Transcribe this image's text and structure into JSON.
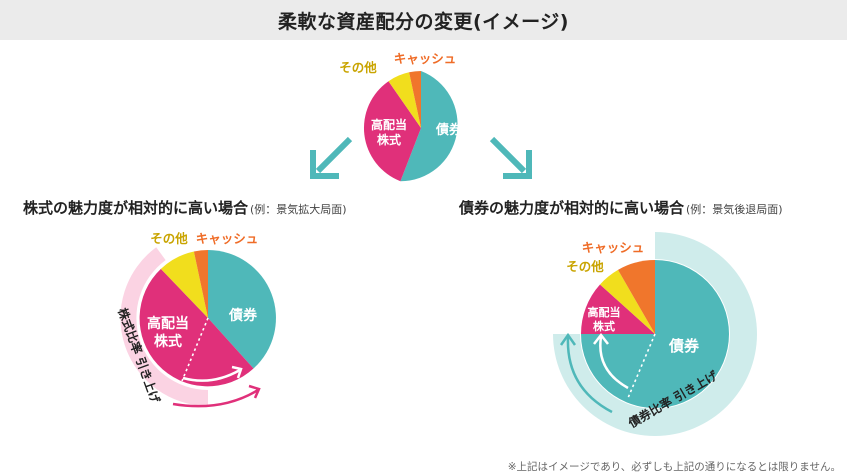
{
  "title": "柔軟な資産配分の変更(イメージ)",
  "labels": {
    "bonds": "債券",
    "stocks_line1": "高配当",
    "stocks_line2": "株式",
    "other": "その他",
    "cash": "キャッシュ"
  },
  "left_scenario": {
    "heading": "株式の魅力度が相対的に高い場合",
    "sub": "(例：景気拡大局面)",
    "arc_label": "株式比率 引き上げ"
  },
  "right_scenario": {
    "heading": "債券の魅力度が相対的に高い場合",
    "sub": "(例：景気後退局面)",
    "arc_label": "債券比率 引き上げ"
  },
  "footnote": "※上記はイメージであり、必ずしも上記の通りになるとは限りません。",
  "colors": {
    "bonds": "#4fb8b9",
    "stocks": "#e0307a",
    "other": "#f1de1d",
    "cash": "#f0762c",
    "stock_highlight": "#fbd3e3",
    "bond_highlight": "#cfeceb",
    "arrow": "#4fb8b9"
  }
}
